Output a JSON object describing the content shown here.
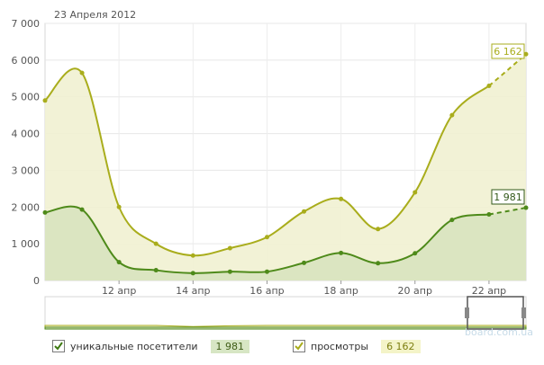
{
  "header": {
    "date": "23 Апреля 2012"
  },
  "chart_data": {
    "type": "area",
    "title": "",
    "xlabel": "",
    "ylabel": "",
    "ylim": [
      0,
      7000
    ],
    "yticks": [
      "0",
      "1 000",
      "2 000",
      "3 000",
      "4 000",
      "5 000",
      "6 000",
      "7 000"
    ],
    "xticks": [
      "12 апр",
      "14 апр",
      "16 апр",
      "18 апр",
      "20 апр",
      "22 апр"
    ],
    "x": [
      "10 апр",
      "11 апр",
      "12 апр",
      "13 апр",
      "14 апр",
      "15 апр",
      "16 апр",
      "17 апр",
      "18 апр",
      "19 апр",
      "20 апр",
      "21 апр",
      "22 апр",
      "23 апр"
    ],
    "grid": true,
    "series": [
      {
        "name": "просмотры",
        "color": "#a9ad1c",
        "fill": "#f1f1d2",
        "values": [
          4900,
          5650,
          2000,
          1000,
          680,
          880,
          1180,
          1880,
          2220,
          1400,
          2400,
          4500,
          5300,
          6162
        ]
      },
      {
        "name": "уникальные посетители",
        "color": "#4e8a1a",
        "fill": "#d8e3bf",
        "values": [
          1850,
          1930,
          500,
          280,
          200,
          240,
          240,
          480,
          750,
          470,
          740,
          1650,
          1800,
          1981
        ]
      }
    ],
    "end_labels": [
      "6 162",
      "1 981"
    ],
    "navigator": {
      "range": "21–23 апр"
    }
  },
  "legend": [
    {
      "label": "уникальные посетители",
      "value": "1 981",
      "check_color": "#3e7a12",
      "value_bg": "#d7e6c4"
    },
    {
      "label": "просмотры",
      "value": "6 162",
      "check_color": "#a9ad1c",
      "value_bg": "#f4f4c8"
    }
  ],
  "watermark": "board.com.ua"
}
